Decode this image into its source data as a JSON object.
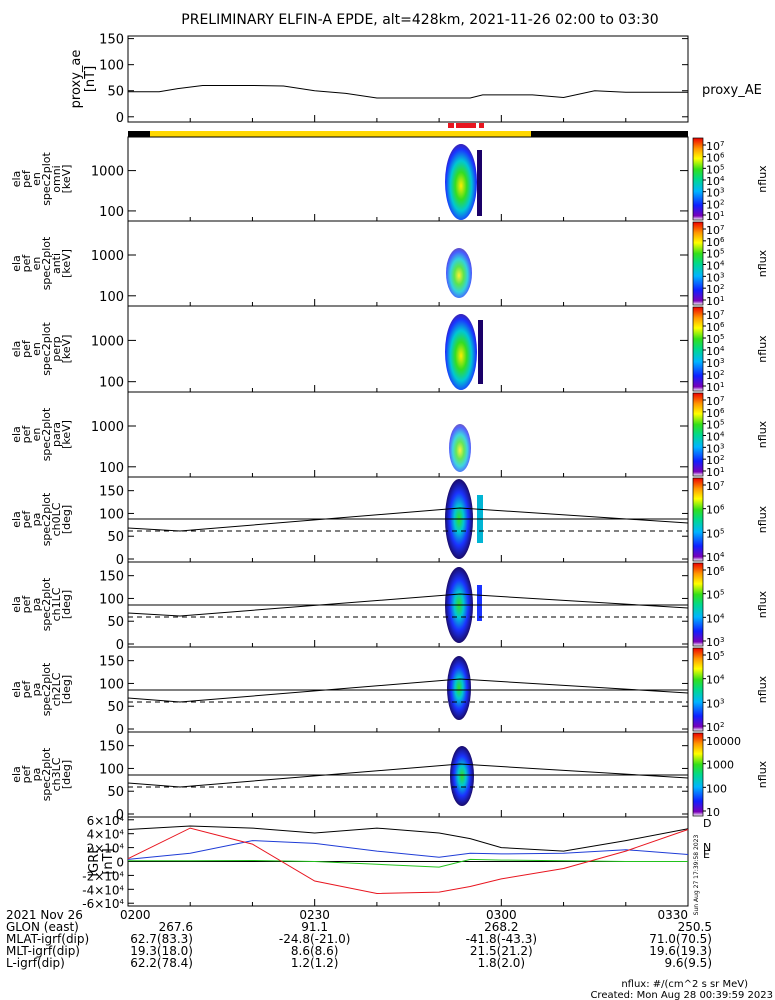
{
  "title": "PRELIMINARY ELFIN-A EPDE, alt=428km, 2021-11-26 02:00 to 03:30",
  "footer": {
    "units": "nflux: #/(cm^2 s sr MeV)",
    "created": "Created: Mon Aug 28 00:39:59 2023",
    "side_stamp": "Sun Aug 27 17:39:58 2023"
  },
  "colors": {
    "trace": "#000000",
    "bx": "#e8151f",
    "by": "#1f3cd6",
    "bz": "#22c21c",
    "bar_yellow": "#ffd700",
    "bar_black": "#000000",
    "bar_red": "#e8151f"
  },
  "chart_data": [
    {
      "type": "line",
      "ylabel": "proxy_ae [nT]",
      "legend": "proxy_AE",
      "ylim": [
        -10,
        155
      ],
      "yticks": [
        "0",
        "50",
        "100",
        "150"
      ],
      "ytick_values": [
        0,
        50,
        100,
        150
      ],
      "x_minutes": [
        0,
        5,
        8,
        12,
        20,
        25,
        30,
        35,
        40,
        45,
        48,
        50,
        55,
        57,
        62,
        65,
        70,
        75,
        80,
        85,
        90
      ],
      "y": [
        48,
        48,
        54,
        60,
        60,
        59,
        50,
        45,
        36,
        36,
        36,
        36,
        36,
        42,
        42,
        42,
        37,
        50,
        47,
        47,
        47
      ]
    },
    {
      "type": "heatmap",
      "ylabel": [
        "ela",
        "pef",
        "en",
        "spec2plot",
        "omni",
        "[keV]"
      ],
      "yticks": [
        "100",
        "1000"
      ],
      "colorbar_ticks": [
        "10^7",
        "10^6",
        "10^5",
        "10^4",
        "10^3",
        "10^2",
        "10^1"
      ],
      "colorbar_label": "nflux"
    },
    {
      "type": "heatmap",
      "ylabel": [
        "ela",
        "pef",
        "en",
        "spec2plot",
        "anti",
        "[keV]"
      ],
      "yticks": [
        "100",
        "1000"
      ],
      "colorbar_ticks": [
        "10^7",
        "10^6",
        "10^5",
        "10^4",
        "10^3",
        "10^2",
        "10^1"
      ],
      "colorbar_label": "nflux"
    },
    {
      "type": "heatmap",
      "ylabel": [
        "ela",
        "pef",
        "en",
        "spec2plot",
        "perp",
        "[keV]"
      ],
      "yticks": [
        "100",
        "1000"
      ],
      "colorbar_ticks": [
        "10^7",
        "10^6",
        "10^5",
        "10^4",
        "10^3",
        "10^2",
        "10^1"
      ],
      "colorbar_label": "nflux"
    },
    {
      "type": "heatmap",
      "ylabel": [
        "ela",
        "pef",
        "en",
        "spec2plot",
        "para",
        "[keV]"
      ],
      "yticks": [
        "100",
        "1000"
      ],
      "colorbar_ticks": [
        "10^7",
        "10^6",
        "10^5",
        "10^4",
        "10^3",
        "10^2",
        "10^1"
      ],
      "colorbar_label": "nflux"
    },
    {
      "type": "heatmap",
      "ylabel": [
        "ela",
        "pef",
        "pa",
        "spec2plot",
        "ch0LC",
        "[deg]"
      ],
      "yticks": [
        "0",
        "50",
        "100",
        "150"
      ],
      "colorbar_ticks": [
        "10^7",
        "10^6",
        "10^5",
        "10^4"
      ],
      "colorbar_label": "nflux"
    },
    {
      "type": "heatmap",
      "ylabel": [
        "ela",
        "pef",
        "pa",
        "spec2plot",
        "ch1LC",
        "[deg]"
      ],
      "yticks": [
        "0",
        "50",
        "100",
        "150"
      ],
      "colorbar_ticks": [
        "10^6",
        "10^5",
        "10^4",
        "10^3"
      ],
      "colorbar_label": "nflux"
    },
    {
      "type": "heatmap",
      "ylabel": [
        "ela",
        "pef",
        "pa",
        "spec2plot",
        "ch2LC",
        "[deg]"
      ],
      "yticks": [
        "0",
        "50",
        "100",
        "150"
      ],
      "colorbar_ticks": [
        "10^5",
        "10^4",
        "10^3",
        "10^2"
      ],
      "colorbar_label": "nflux"
    },
    {
      "type": "heatmap",
      "ylabel": [
        "ela",
        "pef",
        "pa",
        "spec2plot",
        "ch3LC",
        "[deg]"
      ],
      "yticks": [
        "0",
        "50",
        "100",
        "150"
      ],
      "colorbar_ticks": [
        "10000",
        "1000",
        "100",
        "10"
      ],
      "colorbar_label": "nflux"
    },
    {
      "type": "line",
      "ylabel": [
        "IGRF",
        "[nT]"
      ],
      "ylim": [
        -64000,
        64000
      ],
      "yticks": [
        "6×10^4",
        "4×10^4",
        "2×10^4",
        "0",
        "-2×10^4",
        "-4×10^4",
        "-6×10^4"
      ],
      "ytick_values": [
        60000,
        40000,
        20000,
        0,
        -20000,
        -40000,
        -60000
      ],
      "x_minutes": [
        0,
        10,
        20,
        30,
        40,
        50,
        55,
        60,
        70,
        80,
        90
      ],
      "series": [
        {
          "name": "D",
          "values": [
            46000,
            51000,
            48000,
            41000,
            48000,
            41000,
            33000,
            20000,
            15000,
            30000,
            47000
          ]
        },
        {
          "name": "N",
          "values": [
            3000,
            12000,
            30000,
            26000,
            15000,
            6000,
            12000,
            11000,
            12000,
            17000,
            10000
          ]
        },
        {
          "name": "E",
          "values": [
            1000,
            1000,
            1500,
            0,
            -4000,
            -8000,
            3000,
            2000,
            1000,
            0,
            0
          ]
        },
        {
          "name": "",
          "values": [
            4000,
            48000,
            25000,
            -28000,
            -46000,
            -44000,
            -36000,
            -25000,
            -10000,
            15000,
            46000
          ]
        }
      ]
    }
  ],
  "time_table": {
    "labels": [
      "2021 Nov 26",
      "GLON (east)",
      "MLAT-igrf(dip)",
      "MLT-igrf(dip)",
      "L-igrf(dip)"
    ],
    "columns": [
      {
        "time": "0200",
        "values": [
          "267.6",
          "62.7(83.3)",
          "19.3(18.0)",
          "62.2(78.4)"
        ]
      },
      {
        "time": "0230",
        "values": [
          "91.1",
          "-24.8(-21.0)",
          "8.6(8.6)",
          "1.2(1.2)"
        ]
      },
      {
        "time": "0300",
        "values": [
          "268.2",
          "-41.8(-43.3)",
          "21.5(21.2)",
          "1.8(2.0)"
        ]
      },
      {
        "time": "0330",
        "values": [
          "250.5",
          "71.0(70.5)",
          "19.6(19.3)",
          "9.6(9.5)"
        ]
      }
    ]
  }
}
